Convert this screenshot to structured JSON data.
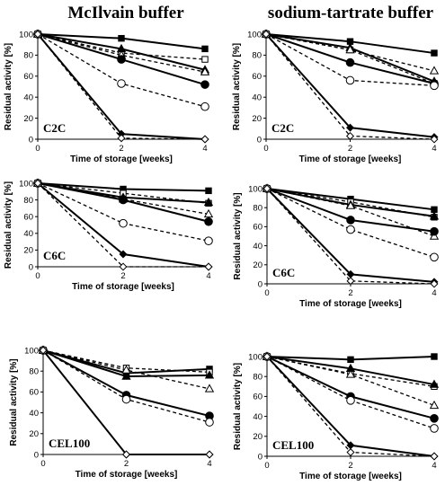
{
  "column_titles": [
    "McIlvain buffer",
    "sodium-tartrate buffer"
  ],
  "chart_data": [
    {
      "type": "line",
      "buffer": "McIlvain buffer",
      "panel_label": "C2C",
      "xlabel": "Time of storage [weeks]",
      "ylabel": "Residual activity [%]",
      "x": [
        0,
        2,
        4
      ],
      "xlim": [
        0,
        4
      ],
      "ylim": [
        0,
        100
      ],
      "xticks": [
        0,
        2,
        4
      ],
      "yticks": [
        0,
        20,
        40,
        60,
        80,
        100
      ],
      "series": [
        {
          "marker": "square-filled",
          "line": "solid",
          "values": [
            100,
            96,
            86
          ]
        },
        {
          "marker": "square-open",
          "line": "dashed",
          "values": [
            100,
            82,
            76
          ]
        },
        {
          "marker": "triangle-filled",
          "line": "solid",
          "values": [
            100,
            86,
            66
          ]
        },
        {
          "marker": "triangle-open",
          "line": "dashed",
          "values": [
            100,
            80,
            64
          ]
        },
        {
          "marker": "circle-filled",
          "line": "solid",
          "values": [
            100,
            76,
            52
          ]
        },
        {
          "marker": "circle-open",
          "line": "dashed",
          "values": [
            100,
            53,
            31
          ]
        },
        {
          "marker": "diamond-filled",
          "line": "solid",
          "values": [
            100,
            5,
            0
          ]
        },
        {
          "marker": "diamond-open",
          "line": "dashed",
          "values": [
            100,
            1,
            0
          ]
        }
      ]
    },
    {
      "type": "line",
      "buffer": "sodium-tartrate buffer",
      "panel_label": "C2C",
      "xlabel": "Time of storage [weeks]",
      "ylabel": "Residual activity [%]",
      "x": [
        0,
        2,
        4
      ],
      "xlim": [
        0,
        4
      ],
      "ylim": [
        0,
        100
      ],
      "xticks": [
        0,
        2,
        4
      ],
      "yticks": [
        0,
        20,
        40,
        60,
        80,
        100
      ],
      "series": [
        {
          "marker": "square-filled",
          "line": "solid",
          "values": [
            100,
            93,
            82
          ]
        },
        {
          "marker": "square-open",
          "line": "dashed",
          "values": [
            100,
            85,
            53
          ]
        },
        {
          "marker": "triangle-filled",
          "line": "solid",
          "values": [
            100,
            87,
            55
          ]
        },
        {
          "marker": "triangle-open",
          "line": "dashed",
          "values": [
            100,
            85,
            65
          ]
        },
        {
          "marker": "circle-filled",
          "line": "solid",
          "values": [
            100,
            73,
            53
          ]
        },
        {
          "marker": "circle-open",
          "line": "dashed",
          "values": [
            100,
            56,
            51
          ]
        },
        {
          "marker": "diamond-filled",
          "line": "solid",
          "values": [
            100,
            11,
            2
          ]
        },
        {
          "marker": "diamond-open",
          "line": "dashed",
          "values": [
            100,
            3,
            0
          ]
        }
      ]
    },
    {
      "type": "line",
      "buffer": "McIlvain buffer",
      "panel_label": "C6C",
      "xlabel": "Time of storage [weeks]",
      "ylabel": "Residual activity [%]",
      "x": [
        0,
        2,
        4
      ],
      "xlim": [
        0,
        4
      ],
      "ylim": [
        0,
        100
      ],
      "xticks": [
        0,
        2,
        4
      ],
      "yticks": [
        0,
        20,
        40,
        60,
        80,
        100
      ],
      "series": [
        {
          "marker": "square-filled",
          "line": "solid",
          "values": [
            100,
            93,
            91
          ]
        },
        {
          "marker": "square-open",
          "line": "dashed",
          "values": [
            100,
            88,
            76
          ]
        },
        {
          "marker": "triangle-filled",
          "line": "solid",
          "values": [
            100,
            83,
            77
          ]
        },
        {
          "marker": "triangle-open",
          "line": "dashed",
          "values": [
            100,
            81,
            63
          ]
        },
        {
          "marker": "circle-filled",
          "line": "solid",
          "values": [
            100,
            80,
            54
          ]
        },
        {
          "marker": "circle-open",
          "line": "dashed",
          "values": [
            100,
            52,
            31
          ]
        },
        {
          "marker": "diamond-filled",
          "line": "solid",
          "values": [
            100,
            15,
            0
          ]
        },
        {
          "marker": "diamond-open",
          "line": "dashed",
          "values": [
            100,
            0,
            0
          ]
        }
      ]
    },
    {
      "type": "line",
      "buffer": "sodium-tartrate buffer",
      "panel_label": "C6C",
      "xlabel": "Time of storage [weeks]",
      "ylabel": "Residual activity [%]",
      "x": [
        0,
        2,
        4
      ],
      "xlim": [
        0,
        4
      ],
      "ylim": [
        0,
        100
      ],
      "xticks": [
        0,
        2,
        4
      ],
      "yticks": [
        0,
        20,
        40,
        60,
        80,
        100
      ],
      "series": [
        {
          "marker": "square-filled",
          "line": "solid",
          "values": [
            100,
            89,
            78
          ]
        },
        {
          "marker": "square-open",
          "line": "dashed",
          "values": [
            100,
            86,
            70
          ]
        },
        {
          "marker": "triangle-filled",
          "line": "solid",
          "values": [
            100,
            83,
            71
          ]
        },
        {
          "marker": "triangle-open",
          "line": "dashed",
          "values": [
            100,
            82,
            50
          ]
        },
        {
          "marker": "circle-filled",
          "line": "solid",
          "values": [
            100,
            67,
            55
          ]
        },
        {
          "marker": "circle-open",
          "line": "dashed",
          "values": [
            100,
            57,
            28
          ]
        },
        {
          "marker": "diamond-filled",
          "line": "solid",
          "values": [
            100,
            10,
            2
          ]
        },
        {
          "marker": "diamond-open",
          "line": "dashed",
          "values": [
            100,
            3,
            0
          ]
        }
      ]
    },
    {
      "type": "line",
      "buffer": "McIlvain buffer",
      "panel_label": "CEL100",
      "xlabel": "Time of storage [weeks]",
      "ylabel": "Residual activity [%]",
      "x": [
        0,
        2,
        4
      ],
      "xlim": [
        0,
        4
      ],
      "ylim": [
        0,
        100
      ],
      "xticks": [
        0,
        2,
        4
      ],
      "yticks": [
        0,
        20,
        40,
        60,
        80,
        100
      ],
      "series": [
        {
          "marker": "square-filled",
          "line": "solid",
          "values": [
            100,
            78,
            82
          ]
        },
        {
          "marker": "square-open",
          "line": "dashed",
          "values": [
            100,
            83,
            79
          ]
        },
        {
          "marker": "triangle-filled",
          "line": "solid",
          "values": [
            100,
            75,
            76
          ]
        },
        {
          "marker": "triangle-open",
          "line": "dashed",
          "values": [
            100,
            81,
            63
          ]
        },
        {
          "marker": "circle-filled",
          "line": "solid",
          "values": [
            100,
            57,
            37
          ]
        },
        {
          "marker": "circle-open",
          "line": "dashed",
          "values": [
            100,
            53,
            31
          ]
        },
        {
          "marker": "diamond-filled",
          "line": "solid",
          "values": [
            100,
            0,
            0
          ]
        },
        {
          "marker": "diamond-open",
          "line": "dashed",
          "values": [
            100,
            0,
            0
          ]
        }
      ]
    },
    {
      "type": "line",
      "buffer": "sodium-tartrate buffer",
      "panel_label": "CEL100",
      "xlabel": "Time of storage [weeks]",
      "ylabel": "Residual activity [%]",
      "x": [
        0,
        2,
        4
      ],
      "xlim": [
        0,
        4
      ],
      "ylim": [
        0,
        100
      ],
      "xticks": [
        0,
        2,
        4
      ],
      "yticks": [
        0,
        20,
        40,
        60,
        80,
        100
      ],
      "series": [
        {
          "marker": "square-filled",
          "line": "solid",
          "values": [
            100,
            97,
            100
          ]
        },
        {
          "marker": "square-open",
          "line": "dashed",
          "values": [
            100,
            83,
            70
          ]
        },
        {
          "marker": "triangle-filled",
          "line": "solid",
          "values": [
            100,
            88,
            72
          ]
        },
        {
          "marker": "triangle-open",
          "line": "dashed",
          "values": [
            100,
            82,
            51
          ]
        },
        {
          "marker": "circle-filled",
          "line": "solid",
          "values": [
            100,
            60,
            38
          ]
        },
        {
          "marker": "circle-open",
          "line": "dashed",
          "values": [
            100,
            56,
            28
          ]
        },
        {
          "marker": "diamond-filled",
          "line": "solid",
          "values": [
            100,
            11,
            0
          ]
        },
        {
          "marker": "diamond-open",
          "line": "dashed",
          "values": [
            100,
            4,
            0
          ]
        }
      ]
    }
  ]
}
